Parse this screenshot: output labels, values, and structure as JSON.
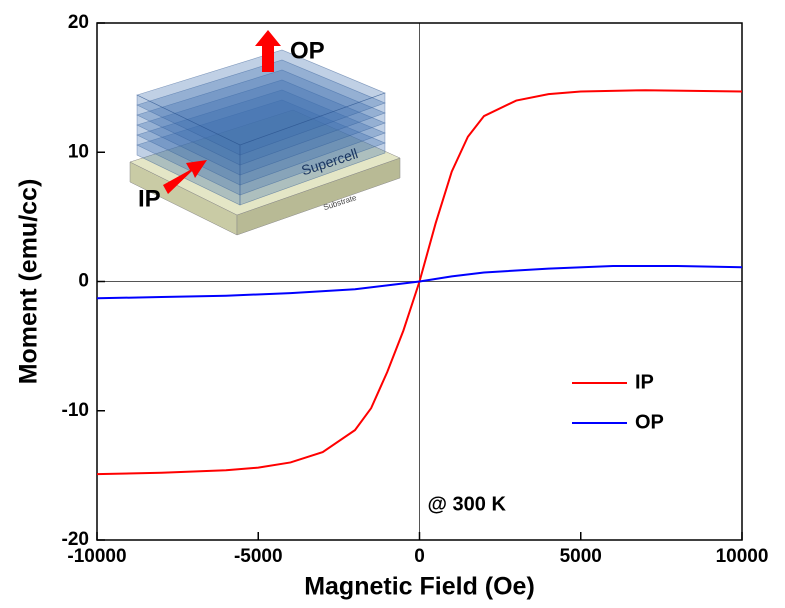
{
  "chart_data": {
    "type": "line",
    "x_label": "Magnetic Field (Oe)",
    "y_label": "Moment (emu/cc)",
    "annotation": "@ 300 K",
    "xlim": [
      -10000,
      10000
    ],
    "xticks": [
      -10000,
      -5000,
      0,
      5000,
      10000
    ],
    "ylim": [
      -20,
      20
    ],
    "yticks": [
      -20,
      -10,
      0,
      10,
      20
    ],
    "legend_position": "lower right",
    "series": [
      {
        "name": "IP",
        "color": "#ff0000",
        "x": [
          -10000,
          -8000,
          -6000,
          -5000,
          -4000,
          -3000,
          -2000,
          -1500,
          -1000,
          -500,
          0,
          500,
          1000,
          1500,
          2000,
          3000,
          4000,
          5000,
          7000,
          10000
        ],
        "values": [
          -14.9,
          -14.8,
          -14.6,
          -14.4,
          -14.0,
          -13.2,
          -11.5,
          -9.8,
          -7.0,
          -3.8,
          0,
          4.5,
          8.5,
          11.2,
          12.8,
          14.0,
          14.5,
          14.7,
          14.8,
          14.7
        ]
      },
      {
        "name": "OP",
        "color": "#0000ff",
        "x": [
          -10000,
          -8000,
          -6000,
          -4000,
          -2000,
          -1000,
          0,
          1000,
          2000,
          4000,
          6000,
          8000,
          10000
        ],
        "values": [
          -1.3,
          -1.2,
          -1.1,
          -0.9,
          -0.6,
          -0.3,
          0,
          0.4,
          0.7,
          1.0,
          1.2,
          1.2,
          1.1
        ]
      }
    ]
  },
  "inset": {
    "op_label": "OP",
    "ip_label": "IP",
    "supercell_label": "Supercell",
    "substrate_label": "Substrate"
  }
}
